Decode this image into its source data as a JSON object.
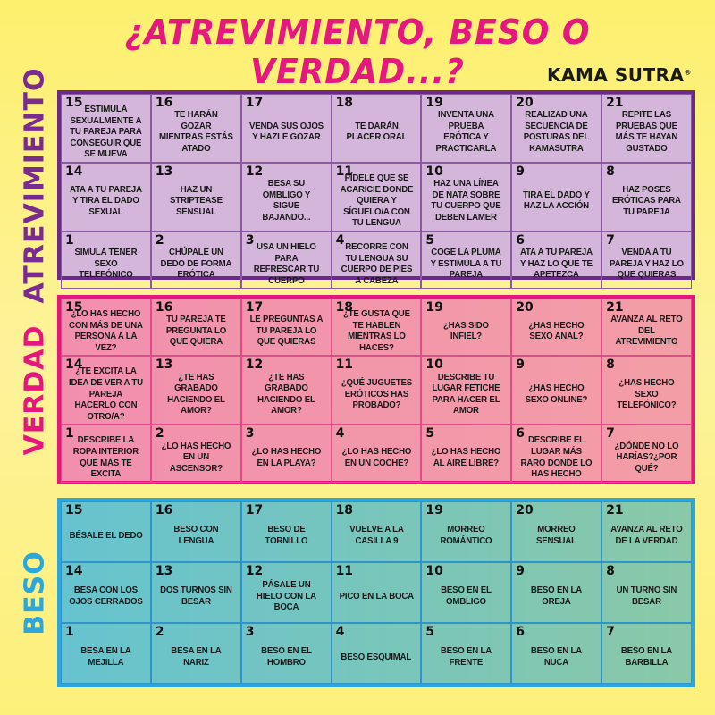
{
  "title": "¿ATREVIMIENTO, BESO O VERDAD...?",
  "brand": "KAMA SUTRA",
  "brand_mark": "®",
  "colors": {
    "background": "#fdf07a",
    "title": "#e4187f",
    "atrevimiento": "#6b2a88",
    "verdad": "#e5177f",
    "beso": "#2ba7df"
  },
  "sections": [
    {
      "label": "ATREVIMIENTO",
      "color": "#7a2b90",
      "cells": [
        {
          "n": "15",
          "text": "Estimula sexualmente a tu pareja para conseguir que se mueva"
        },
        {
          "n": "16",
          "text": "Te harán gozar mientras estás atado"
        },
        {
          "n": "17",
          "text": "Venda sus ojos y hazle gozar"
        },
        {
          "n": "18",
          "text": "Te darán placer oral"
        },
        {
          "n": "19",
          "text": "Inventa una prueba erótica y practicarla"
        },
        {
          "n": "20",
          "text": "Realizad una secuencia de posturas del Kamasutra"
        },
        {
          "n": "21",
          "text": "Repite las pruebas que más te hayan gustado"
        },
        {
          "n": "14",
          "text": "Ata a tu pareja y tira el dado sexual"
        },
        {
          "n": "13",
          "text": "Haz un striptease sensual"
        },
        {
          "n": "12",
          "text": "Besa su ombligo y sigue bajando..."
        },
        {
          "n": "11",
          "text": "Pídele que se acaricie donde quiera y síguelo/a con tu lengua"
        },
        {
          "n": "10",
          "text": "Haz una línea de nata sobre tu cuerpo que deben lamer"
        },
        {
          "n": "9",
          "text": "Tira el dado y haz la acción"
        },
        {
          "n": "8",
          "text": "Haz poses eróticas para tu pareja"
        },
        {
          "n": "1",
          "text": "Simula tener sexo telefónico"
        },
        {
          "n": "2",
          "text": "Chúpale un dedo de forma erótica"
        },
        {
          "n": "3",
          "text": "Usa un hielo para refrescar tu cuerpo"
        },
        {
          "n": "4",
          "text": "Recorre con tu lengua su cuerpo de pies a cabeza"
        },
        {
          "n": "5",
          "text": "Coge la pluma y estimula a tu pareja"
        },
        {
          "n": "6",
          "text": "Ata a tu pareja y haz lo que te apetezca"
        },
        {
          "n": "7",
          "text": "Venda a tu pareja y haz lo que quieras"
        }
      ]
    },
    {
      "label": "VERDAD",
      "color": "#e5177f",
      "cells": [
        {
          "n": "15",
          "text": "¿Lo has hecho con más de una persona a la vez?"
        },
        {
          "n": "16",
          "text": "Tu pareja te pregunta lo que quiera"
        },
        {
          "n": "17",
          "text": "Le preguntas a tu pareja lo que quieras"
        },
        {
          "n": "18",
          "text": "¿Te gusta que te hablen mientras lo haces?"
        },
        {
          "n": "19",
          "text": "¿Has sido infiel?"
        },
        {
          "n": "20",
          "text": "¿Has hecho sexo anal?"
        },
        {
          "n": "21",
          "text": "Avanza al reto del atrevimiento"
        },
        {
          "n": "14",
          "text": "¿Te excita la idea de ver a tu pareja hacerlo con otro/a?"
        },
        {
          "n": "13",
          "text": "¿Te has grabado haciendo el amor?"
        },
        {
          "n": "12",
          "text": "¿Te has grabado haciendo el amor?"
        },
        {
          "n": "11",
          "text": "¿Qué juguetes eróticos has probado?"
        },
        {
          "n": "10",
          "text": "Describe tu lugar fetiche para hacer el amor"
        },
        {
          "n": "9",
          "text": "¿Has hecho sexo online?"
        },
        {
          "n": "8",
          "text": "¿Has hecho sexo telefónico?"
        },
        {
          "n": "1",
          "text": "Describe la ropa interior que más te excita"
        },
        {
          "n": "2",
          "text": "¿Lo has hecho en un ascensor?"
        },
        {
          "n": "3",
          "text": "¿Lo has hecho en la playa?"
        },
        {
          "n": "4",
          "text": "¿Lo has hecho en un coche?"
        },
        {
          "n": "5",
          "text": "¿Lo has hecho al aire libre?"
        },
        {
          "n": "6",
          "text": "Describe el lugar más raro donde lo has hecho"
        },
        {
          "n": "7",
          "text": "¿Dónde no lo harías?¿Por qué?"
        }
      ]
    },
    {
      "label": "BESO",
      "color": "#2ba7df",
      "cells": [
        {
          "n": "15",
          "text": "Bésale el dedo"
        },
        {
          "n": "16",
          "text": "Beso con lengua"
        },
        {
          "n": "17",
          "text": "Beso de tornillo"
        },
        {
          "n": "18",
          "text": "Vuelve a la casilla 9"
        },
        {
          "n": "19",
          "text": "Morreo romántico"
        },
        {
          "n": "20",
          "text": "Morreo sensual"
        },
        {
          "n": "21",
          "text": "Avanza al reto de la verdad"
        },
        {
          "n": "14",
          "text": "Besa con los ojos cerrados"
        },
        {
          "n": "13",
          "text": "Dos turnos sin besar"
        },
        {
          "n": "12",
          "text": "Pásale un hielo con la boca"
        },
        {
          "n": "11",
          "text": "Pico en la boca"
        },
        {
          "n": "10",
          "text": "Beso en el ombligo"
        },
        {
          "n": "9",
          "text": "Beso en la oreja"
        },
        {
          "n": "8",
          "text": "Un turno sin besar"
        },
        {
          "n": "1",
          "text": "Besa en la mejilla"
        },
        {
          "n": "2",
          "text": "Besa en la nariz"
        },
        {
          "n": "3",
          "text": "Beso en el hombro"
        },
        {
          "n": "4",
          "text": "Beso esquimal"
        },
        {
          "n": "5",
          "text": "Beso en la frente"
        },
        {
          "n": "6",
          "text": "Beso en la nuca"
        },
        {
          "n": "7",
          "text": "Beso en la barbilla"
        }
      ]
    }
  ]
}
